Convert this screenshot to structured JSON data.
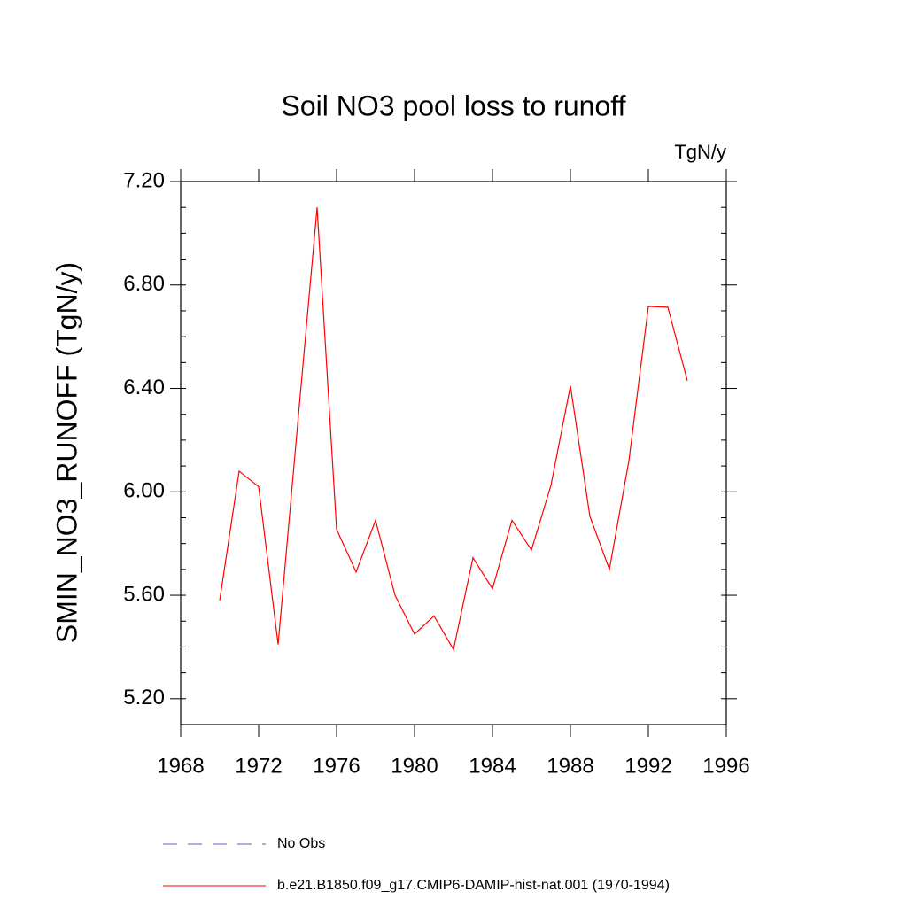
{
  "chart_data": {
    "type": "line",
    "title": "Soil NO3 pool loss to runoff",
    "units": "TgN/y",
    "ylabel": "SMIN_NO3_RUNOFF  (TgN/y)",
    "x": [
      1970,
      1971,
      1972,
      1973,
      1974,
      1975,
      1976,
      1977,
      1978,
      1979,
      1980,
      1981,
      1982,
      1983,
      1984,
      1985,
      1986,
      1987,
      1988,
      1989,
      1990,
      1991,
      1992,
      1993,
      1994
    ],
    "series": [
      {
        "name": "No Obs",
        "color": "#6a5acd",
        "dashed": true,
        "values": [
          null,
          null,
          null,
          null,
          null,
          null,
          null,
          null,
          null,
          null,
          null,
          null,
          null,
          null,
          null,
          null,
          null,
          null,
          null,
          null,
          null,
          null,
          null,
          null,
          null
        ]
      },
      {
        "name": "b.e21.B1850.f09_g17.CMIP6-DAMIP-hist-nat.001 (1970-1994)",
        "color": "#ff0000",
        "dashed": false,
        "values": [
          5.58,
          6.08,
          6.02,
          5.41,
          6.26,
          7.1,
          5.855,
          5.69,
          5.89,
          5.6,
          5.45,
          5.52,
          5.39,
          5.745,
          5.625,
          5.89,
          5.775,
          6.025,
          6.41,
          5.905,
          5.7,
          6.12,
          6.717,
          6.714,
          6.43
        ]
      }
    ],
    "xlim": [
      1968,
      1996
    ],
    "xticks": [
      1968,
      1972,
      1976,
      1980,
      1984,
      1988,
      1992,
      1996
    ],
    "ylim": [
      5.1,
      7.2
    ],
    "yticks": [
      {
        "value": 5.2,
        "label": "5.20"
      },
      {
        "value": 5.6,
        "label": "5.60"
      },
      {
        "value": 6.0,
        "label": "6.00"
      },
      {
        "value": 6.4,
        "label": "6.40"
      },
      {
        "value": 6.8,
        "label": "6.80"
      },
      {
        "value": 7.2,
        "label": "7.20"
      }
    ],
    "grid": false
  }
}
